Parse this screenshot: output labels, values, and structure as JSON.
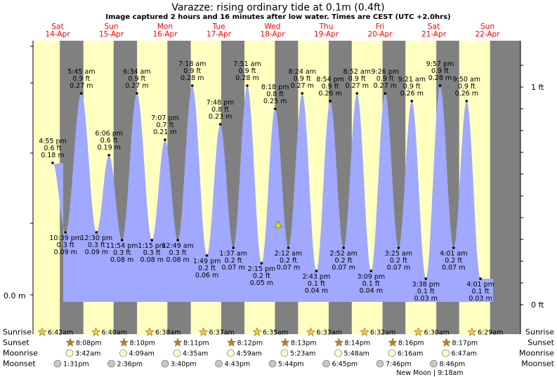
{
  "chart_data": {
    "type": "area",
    "title": "Varazze: rising  ordinary tide at 0.1m (0.4ft)",
    "subtitle": "Image captured 2 hours and 16 minutes after low water. Times are CEST (UTC +2.0hrs)",
    "y_left_unit_label": "0.0 m",
    "y_right_labels": [
      "1 ft",
      "0 ft"
    ],
    "ylim_m": [
      0.0,
      0.3
    ],
    "day_labels": [
      {
        "day": "Sat",
        "date": "14-Apr"
      },
      {
        "day": "Sun",
        "date": "15-Apr"
      },
      {
        "day": "Mon",
        "date": "16-Apr"
      },
      {
        "day": "Tue",
        "date": "17-Apr"
      },
      {
        "day": "Wed",
        "date": "18-Apr"
      },
      {
        "day": "Thu",
        "date": "19-Apr"
      },
      {
        "day": "Fri",
        "date": "20-Apr"
      },
      {
        "day": "Sat",
        "date": "21-Apr"
      },
      {
        "day": "Sun",
        "date": "22-Apr"
      }
    ],
    "tides": [
      {
        "type": "high",
        "time": "4:55 pm",
        "ft": "0.6 ft",
        "m": "0.18 m",
        "value": 0.18
      },
      {
        "type": "low",
        "time": "10:39 pm",
        "ft": "0.3 ft",
        "m": "0.09 m",
        "value": 0.09
      },
      {
        "type": "high",
        "time": "5:45 am",
        "ft": "0.9 ft",
        "m": "0.27 m",
        "value": 0.27
      },
      {
        "type": "low",
        "time": "12:30 pm",
        "ft": "0.3 ft",
        "m": "0.09 m",
        "value": 0.09
      },
      {
        "type": "high",
        "time": "6:06 pm",
        "ft": "0.6 ft",
        "m": "0.19 m",
        "value": 0.19
      },
      {
        "type": "low",
        "time": "11:54 pm",
        "ft": "0.3 ft",
        "m": "0.08 m",
        "value": 0.08
      },
      {
        "type": "high",
        "time": "6:34 am",
        "ft": "0.9 ft",
        "m": "0.27 m",
        "value": 0.27
      },
      {
        "type": "low",
        "time": "1:15 pm",
        "ft": "0.3 ft",
        "m": "0.08 m",
        "value": 0.08
      },
      {
        "type": "high",
        "time": "7:07 pm",
        "ft": "0.7 ft",
        "m": "0.21 m",
        "value": 0.21
      },
      {
        "type": "low",
        "time": "12:49 am",
        "ft": "0.3 ft",
        "m": "0.08 m",
        "value": 0.08
      },
      {
        "type": "high",
        "time": "7:18 am",
        "ft": "0.9 ft",
        "m": "0.28 m",
        "value": 0.28
      },
      {
        "type": "low",
        "time": "1:49 pm",
        "ft": "0.2 ft",
        "m": "0.06 m",
        "value": 0.06
      },
      {
        "type": "high",
        "time": "7:48 pm",
        "ft": "0.8 ft",
        "m": "0.23 m",
        "value": 0.23
      },
      {
        "type": "low",
        "time": "1:37 am",
        "ft": "0.2 ft",
        "m": "0.07 m",
        "value": 0.07
      },
      {
        "type": "high",
        "time": "7:51 am",
        "ft": "0.9 ft",
        "m": "0.28 m",
        "value": 0.28
      },
      {
        "type": "low",
        "time": "2:15 pm",
        "ft": "0.2 ft",
        "m": "0.05 m",
        "value": 0.05
      },
      {
        "type": "high",
        "time": "8:18 pm",
        "ft": "0.8 ft",
        "m": "0.25 m",
        "value": 0.25
      },
      {
        "type": "low",
        "time": "2:12 am",
        "ft": "0.2 ft",
        "m": "0.07 m",
        "value": 0.07
      },
      {
        "type": "high",
        "time": "8:24 am",
        "ft": "0.9 ft",
        "m": "0.27 m",
        "value": 0.27
      },
      {
        "type": "low",
        "time": "2:43 pm",
        "ft": "0.1 ft",
        "m": "0.04 m",
        "value": 0.04
      },
      {
        "type": "high",
        "time": "8:54 pm",
        "ft": "0.9 ft",
        "m": "0.26 m",
        "value": 0.26
      },
      {
        "type": "low",
        "time": "2:52 am",
        "ft": "0.2 ft",
        "m": "0.07 m",
        "value": 0.07
      },
      {
        "type": "high",
        "time": "8:52 am",
        "ft": "0.9 ft",
        "m": "0.27 m",
        "value": 0.27
      },
      {
        "type": "low",
        "time": "3:09 pm",
        "ft": "0.1 ft",
        "m": "0.04 m",
        "value": 0.04
      },
      {
        "type": "high",
        "time": "9:26 pm",
        "ft": "0.9 ft",
        "m": "0.27 m",
        "value": 0.27
      },
      {
        "type": "low",
        "time": "3:25 am",
        "ft": "0.2 ft",
        "m": "0.07 m",
        "value": 0.07
      },
      {
        "type": "high",
        "time": "9:21 am",
        "ft": "0.9 ft",
        "m": "0.26 m",
        "value": 0.26
      },
      {
        "type": "low",
        "time": "3:38 pm",
        "ft": "0.1 ft",
        "m": "0.03 m",
        "value": 0.03
      },
      {
        "type": "high",
        "time": "9:57 pm",
        "ft": "0.9 ft",
        "m": "0.28 m",
        "value": 0.28
      },
      {
        "type": "low",
        "time": "4:01 am",
        "ft": "0.2 ft",
        "m": "0.07 m",
        "value": 0.07
      },
      {
        "type": "high",
        "time": "9:50 am",
        "ft": "0.9 ft",
        "m": "0.26 m",
        "value": 0.26
      },
      {
        "type": "low",
        "time": "4:01 pm",
        "ft": "0.1 ft",
        "m": "0.03 m",
        "value": 0.03
      }
    ],
    "current_marker": {
      "value": 0.1
    },
    "astro": {
      "row_labels": [
        "Sunrise",
        "Sunset",
        "Moonrise",
        "Moonset"
      ],
      "sunrise": [
        "6:42am",
        "6:40am",
        "6:38am",
        "6:37am",
        "6:35am",
        "6:33am",
        "6:32am",
        "6:30am",
        "6:29am"
      ],
      "sunset": [
        "8:08pm",
        "8:10pm",
        "8:11pm",
        "8:12pm",
        "8:13pm",
        "8:14pm",
        "8:16pm",
        "8:17pm"
      ],
      "moonrise": [
        "3:42am",
        "4:09am",
        "4:35am",
        "4:59am",
        "5:23am",
        "5:48am",
        "6:16am",
        "6:47am"
      ],
      "moonset": [
        "1:31pm",
        "2:36pm",
        "3:40pm",
        "4:43pm",
        "5:44pm",
        "6:45pm",
        "7:46pm",
        "8:46pm"
      ],
      "new_moon_note": "New Moon | 9:18am"
    },
    "colors": {
      "day": "#ffffc0",
      "night": "#808080",
      "tide_fill": "#a0a8ff",
      "day_label": "#ff0000",
      "sun_icon": "#f0d040",
      "sunset_icon": "#c08020",
      "moonrise_icon": "#ffffc8",
      "moonset_icon": "#c8c8c0"
    }
  }
}
